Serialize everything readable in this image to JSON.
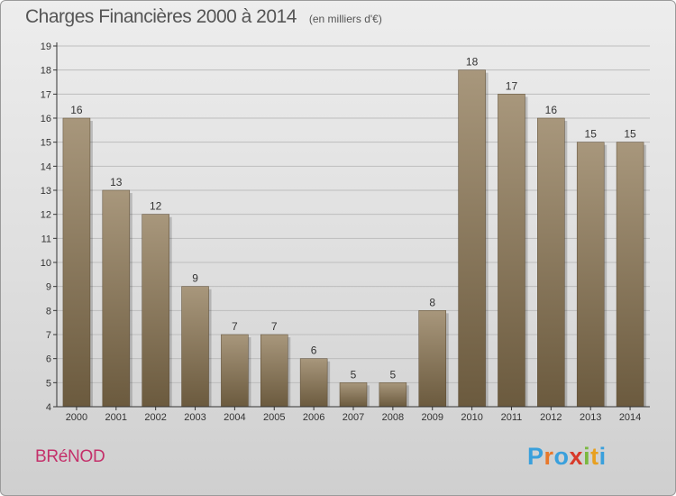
{
  "header": {
    "title": "Charges Financières 2000 à 2014",
    "subtitle": "(en milliers d'€)"
  },
  "footer": {
    "commune": "BRéNOD",
    "brand": "Proxiti",
    "brand_letter_colors": [
      "#3aa0dc",
      "#e8782a",
      "#3aa0dc",
      "#d83a2a",
      "#7ab840",
      "#e8a020",
      "#3aa0dc"
    ]
  },
  "colors": {
    "bar_top": "#a8977c",
    "bar_bottom": "#6b5a3e",
    "axis": "#333333",
    "grid": "#bdbdbd"
  },
  "chart_data": {
    "type": "bar",
    "categories": [
      "2000",
      "2001",
      "2002",
      "2003",
      "2004",
      "2005",
      "2006",
      "2007",
      "2008",
      "2009",
      "2010",
      "2011",
      "2012",
      "2013",
      "2014"
    ],
    "values": [
      16,
      13,
      12,
      9,
      7,
      7,
      6,
      5,
      5,
      8,
      18,
      17,
      16,
      15,
      15
    ],
    "ylim": [
      4,
      19
    ],
    "yticks": [
      4,
      5,
      6,
      7,
      8,
      9,
      10,
      11,
      12,
      13,
      14,
      15,
      16,
      17,
      18,
      19
    ],
    "grid": true,
    "data_labels": true
  }
}
